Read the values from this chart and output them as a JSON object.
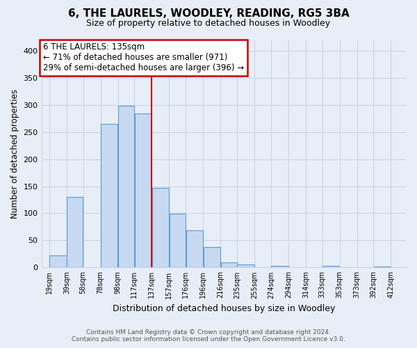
{
  "title": "6, THE LAURELS, WOODLEY, READING, RG5 3BA",
  "subtitle": "Size of property relative to detached houses in Woodley",
  "xlabel": "Distribution of detached houses by size in Woodley",
  "ylabel": "Number of detached properties",
  "footer_line1": "Contains HM Land Registry data © Crown copyright and database right 2024.",
  "footer_line2": "Contains public sector information licensed under the Open Government Licence v3.0.",
  "bar_left_edges": [
    19,
    39,
    58,
    78,
    98,
    117,
    137,
    157,
    176,
    196,
    216,
    235,
    255,
    274,
    294,
    314,
    333,
    353,
    373,
    392
  ],
  "bar_widths": [
    20,
    19,
    20,
    20,
    19,
    20,
    20,
    19,
    20,
    20,
    19,
    20,
    19,
    20,
    20,
    19,
    20,
    20,
    19,
    20
  ],
  "bar_heights": [
    22,
    130,
    0,
    265,
    298,
    285,
    147,
    99,
    69,
    38,
    10,
    5,
    0,
    3,
    0,
    0,
    3,
    0,
    0,
    2
  ],
  "bar_color": "#c6d9f0",
  "bar_edge_color": "#5b9bd5",
  "bg_color": "#e8eef7",
  "plot_bg_color": "#e8eef7",
  "grid_color": "#c8d4e8",
  "vline_x": 137,
  "vline_color": "#cc0000",
  "annotation_text_line1": "6 THE LAURELS: 135sqm",
  "annotation_text_line2": "← 71% of detached houses are smaller (971)",
  "annotation_text_line3": "29% of semi-detached houses are larger (396) →",
  "annotation_box_color": "#cc0000",
  "annotation_fill_color": "#ffffff",
  "tick_labels": [
    "19sqm",
    "39sqm",
    "58sqm",
    "78sqm",
    "98sqm",
    "117sqm",
    "137sqm",
    "157sqm",
    "176sqm",
    "196sqm",
    "216sqm",
    "235sqm",
    "255sqm",
    "274sqm",
    "294sqm",
    "314sqm",
    "333sqm",
    "353sqm",
    "373sqm",
    "392sqm",
    "412sqm"
  ],
  "tick_positions": [
    19,
    39,
    58,
    78,
    98,
    117,
    137,
    157,
    176,
    196,
    216,
    235,
    255,
    274,
    294,
    314,
    333,
    353,
    373,
    392,
    412
  ],
  "ylim": [
    0,
    420
  ],
  "xlim": [
    10,
    430
  ]
}
